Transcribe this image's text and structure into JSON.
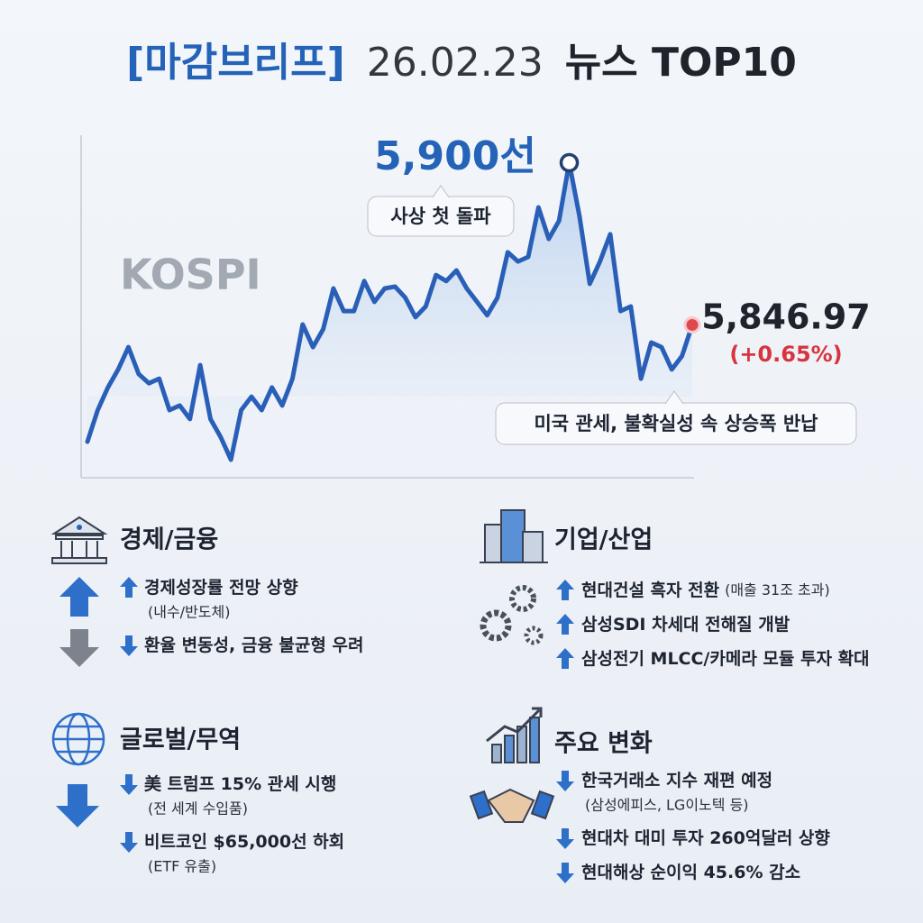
{
  "chart_data": {
    "type": "line",
    "title_tag": "[마감브리프]",
    "title_date": "26.02.23",
    "title_main": "뉴스 TOP10",
    "label": "KOSPI",
    "color": "#2a5fb8",
    "values": [
      5808.8,
      5819.1,
      5826.5,
      5832.4,
      5839.7,
      5830.9,
      5827.9,
      5829.4,
      5819.1,
      5820.6,
      5816.2,
      5833.8,
      5816.2,
      5810.3,
      5802.9,
      5819.1,
      5823.5,
      5819.1,
      5826.5,
      5820.6,
      5829.4,
      5847.1,
      5839.7,
      5845.6,
      5858.9,
      5851.5,
      5851.5,
      5861.3,
      5854.5,
      5858.9,
      5859.5,
      5855.9,
      5849.5,
      5853.0,
      5863.3,
      5861.3,
      5864.8,
      5858.9,
      5854.5,
      5850.1,
      5855.9,
      5870.7,
      5867.7,
      5869.2,
      5885.4,
      5875.1,
      5881.0,
      5900,
      5882.5,
      5860.4,
      5867.7,
      5876.6,
      5851.5,
      5853.0,
      5829.4,
      5841.2,
      5839.7,
      5832.4,
      5836.8,
      5846.97
    ],
    "ylim": [
      5797,
      5909
    ],
    "peak_label": "5,900선",
    "peak_note": "사상 첫 돌파",
    "last_label": "5,846.97",
    "change_label": "(+0.65%)",
    "last_note": "미국 관세, 불확실성 속 상승폭 반납"
  },
  "sections": [
    {
      "title": "경제/금융",
      "items": [
        {
          "text": "경제성장률 전망 상향",
          "note": "(내수/반도체)",
          "direction": "up"
        },
        {
          "text": "환율 변동성, 금융 불균형 우려",
          "direction": "down"
        }
      ]
    },
    {
      "title": "기업/산업",
      "items": [
        {
          "text": "현대건설 흑자 전환",
          "detail": "(매출 31조 초과)",
          "direction": "up"
        },
        {
          "text": "삼성SDI 차세대 전해질 개발",
          "direction": "up"
        },
        {
          "text": "삼성전기 MLCC/카메라 모듈 투자 확대",
          "direction": "up"
        }
      ]
    },
    {
      "title": "글로벌/무역",
      "items": [
        {
          "text": "美 트럼프 15% 관세 시행",
          "note": "(전 세계 수입품)",
          "direction": "down"
        },
        {
          "text": "비트코인 $65,000선 하회",
          "note": "(ETF 유출)",
          "direction": "down"
        }
      ]
    },
    {
      "title": "주요 변화",
      "items": [
        {
          "text": "한국거래소 지수 재편 예정",
          "note": "(삼성에피스, LG이노텍 등)",
          "direction": "down"
        },
        {
          "text": "현대차 대미 투자 260억달러 상향",
          "direction": "down"
        },
        {
          "text": "현대해상 순이익 45.6% 감소",
          "direction": "down"
        }
      ]
    }
  ]
}
